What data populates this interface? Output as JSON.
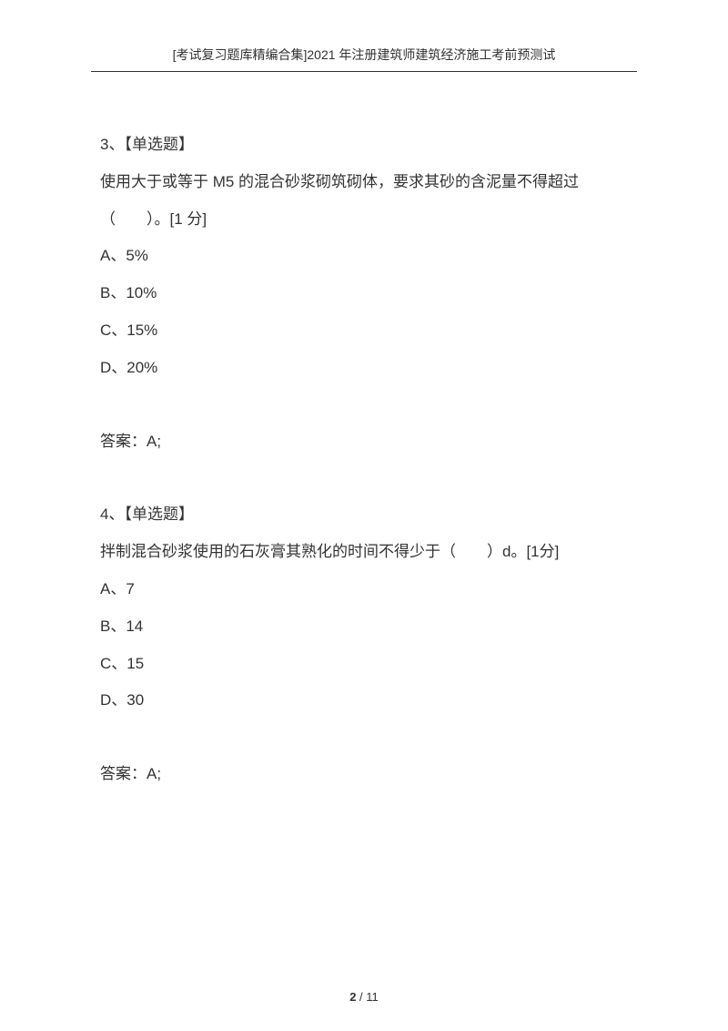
{
  "header": {
    "title": "[考试复习题库精编合集]2021 年注册建筑师建筑经济施工考前预测试"
  },
  "questions": [
    {
      "number": "3、",
      "type": "【单选题】",
      "text": "使用大于或等于 M5 的混合砂浆砌筑砌体，要求其砂的含泥量不得超过（　　）。[1 分]",
      "options": [
        "A、5%",
        "B、10%",
        "C、15%",
        "D、20%"
      ],
      "answer": "答案：A;"
    },
    {
      "number": "4、",
      "type": "【单选题】",
      "text": "拌制混合砂浆使用的石灰膏其熟化的时间不得少于（　　）d。[1分]",
      "options": [
        "A、7",
        "B、14",
        "C、15",
        "D、30"
      ],
      "answer": "答案：A;"
    }
  ],
  "pagination": {
    "current": "2",
    "separator": " / ",
    "total": "11"
  }
}
